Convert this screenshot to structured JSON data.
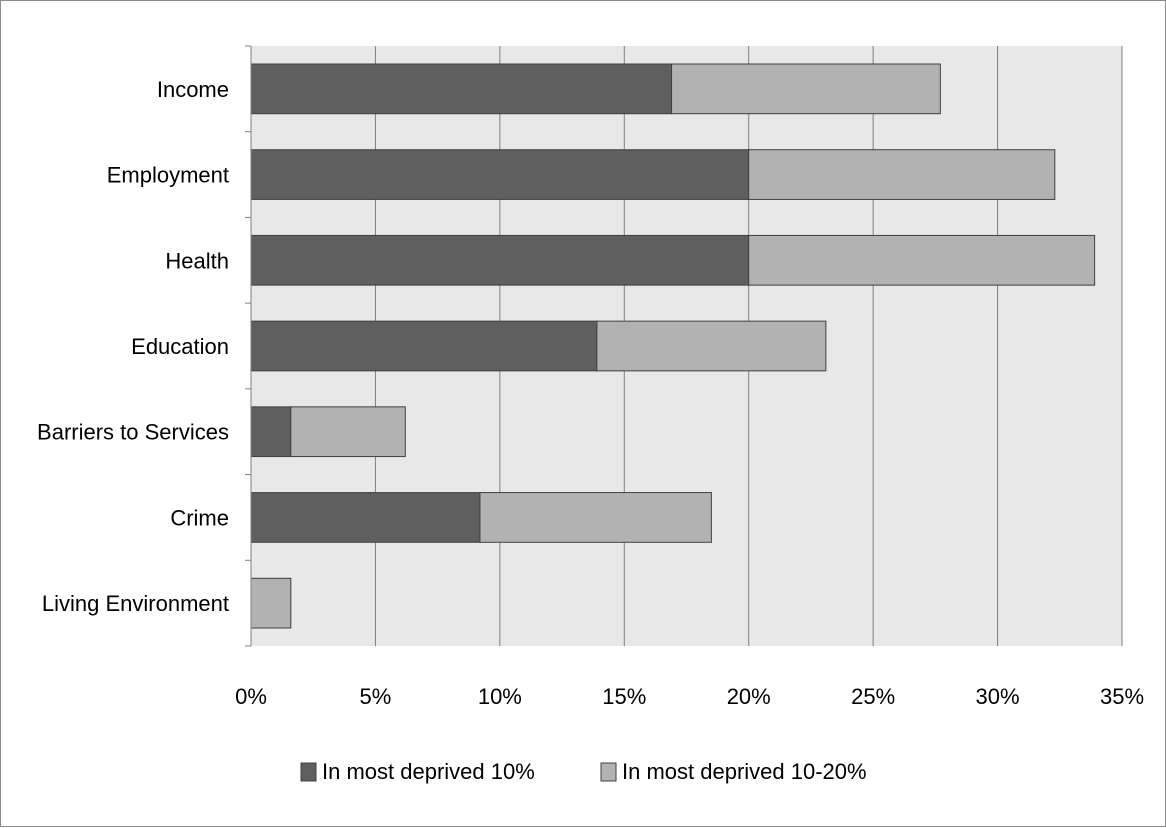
{
  "chart_data": {
    "type": "bar",
    "orientation": "horizontal",
    "stacked": true,
    "categories": [
      "Income",
      "Employment",
      "Health",
      "Education",
      "Barriers to Services",
      "Crime",
      "Living Environment"
    ],
    "series": [
      {
        "name": "In most deprived 10%",
        "values": [
          16.9,
          20.0,
          20.0,
          13.9,
          1.6,
          9.2,
          0.0
        ]
      },
      {
        "name": "In most deprived 10-20%",
        "values": [
          10.8,
          12.3,
          13.9,
          9.2,
          4.6,
          9.3,
          1.6
        ]
      }
    ],
    "x_ticks": [
      "0%",
      "5%",
      "10%",
      "15%",
      "20%",
      "25%",
      "30%",
      "35%"
    ],
    "xlim": [
      0,
      35
    ],
    "grid": "vertical",
    "legend_position": "bottom",
    "colors": {
      "series_1": "#5f5f5f",
      "series_2": "#b2b2b2",
      "plot_background": "#e8e8e8",
      "gridline": "#7f7f7f",
      "bar_edge": "#404040"
    }
  }
}
